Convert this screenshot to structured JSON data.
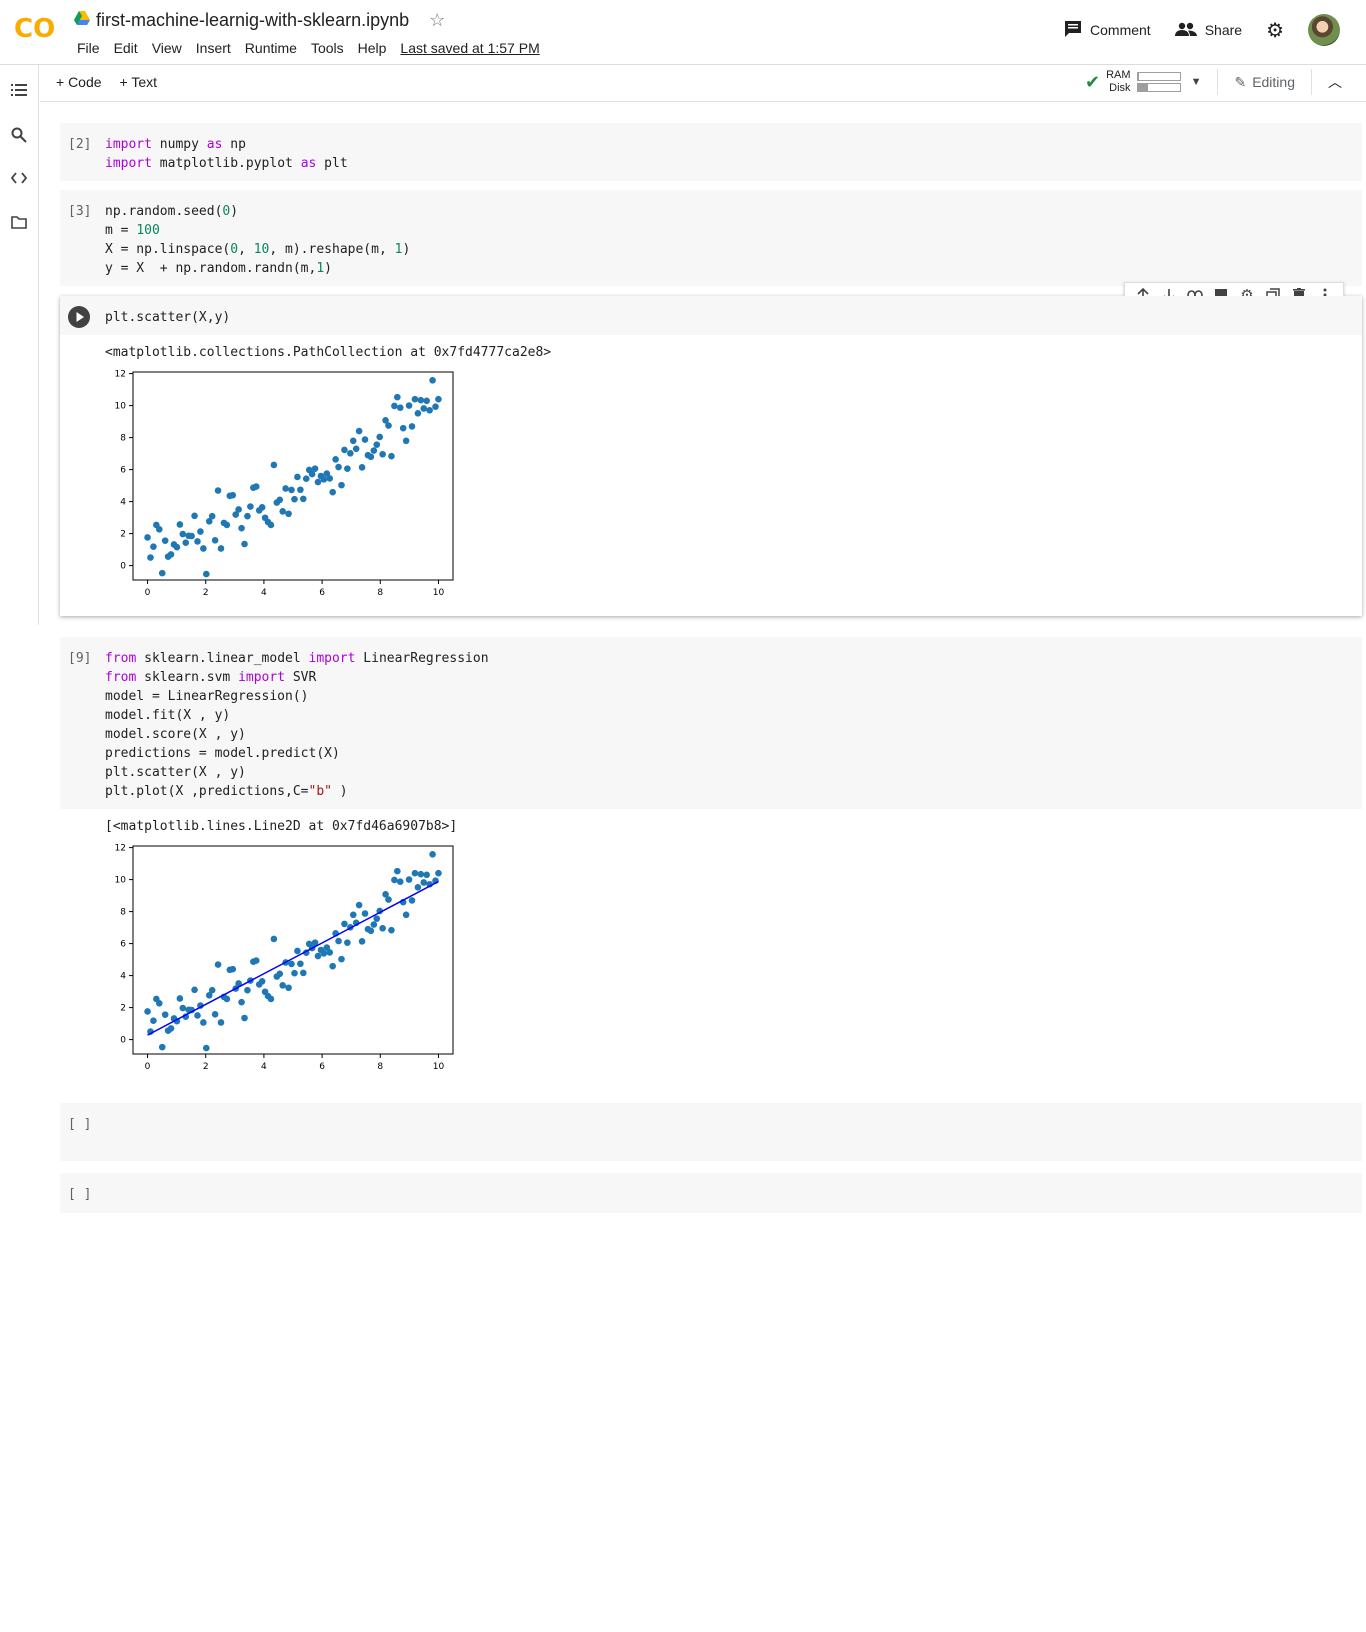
{
  "app": {
    "logo_text": "CO",
    "notebook_title": "first-machine-learnig-with-sklearn.ipynb",
    "menu": [
      "File",
      "Edit",
      "View",
      "Insert",
      "Runtime",
      "Tools",
      "Help"
    ],
    "last_saved": "Last saved at 1:57 PM",
    "comment_label": "Comment",
    "share_label": "Share"
  },
  "toolbar": {
    "add_code": "+ Code",
    "add_text": "+ Text",
    "ram_label": "RAM",
    "disk_label": "Disk",
    "ram_fill": 0.04,
    "disk_fill": 0.25,
    "editing_label": "Editing"
  },
  "cells": [
    {
      "prompt": "[2]",
      "lines": [
        [
          {
            "t": "import",
            "c": "kw"
          },
          {
            "t": " numpy "
          },
          {
            "t": "as",
            "c": "kw"
          },
          {
            "t": " np"
          }
        ],
        [
          {
            "t": "import",
            "c": "kw"
          },
          {
            "t": " matplotlib.pyplot "
          },
          {
            "t": "as",
            "c": "kw"
          },
          {
            "t": " plt"
          }
        ]
      ]
    },
    {
      "prompt": "[3]",
      "lines": [
        [
          {
            "t": "np.random.seed("
          },
          {
            "t": "0",
            "c": "num"
          },
          {
            "t": ")"
          }
        ],
        [
          {
            "t": "m = "
          },
          {
            "t": "100",
            "c": "num"
          }
        ],
        [
          {
            "t": "X = np.linspace("
          },
          {
            "t": "0",
            "c": "num"
          },
          {
            "t": ", "
          },
          {
            "t": "10",
            "c": "num"
          },
          {
            "t": ", m).reshape(m, "
          },
          {
            "t": "1",
            "c": "num"
          },
          {
            "t": ")"
          }
        ],
        [
          {
            "t": "y = X  + np.random.randn(m,"
          },
          {
            "t": "1",
            "c": "num"
          },
          {
            "t": ")"
          }
        ]
      ]
    },
    {
      "prompt": "",
      "lines": [
        [
          {
            "t": "plt.scatter(X,y)"
          }
        ]
      ],
      "output": "<matplotlib.collections.PathCollection at 0x7fd4777ca2e8>"
    },
    {
      "prompt": "[9]",
      "lines": [
        [
          {
            "t": "from",
            "c": "kw"
          },
          {
            "t": " sklearn.linear_model "
          },
          {
            "t": "import",
            "c": "kw"
          },
          {
            "t": " LinearRegression"
          }
        ],
        [
          {
            "t": "from",
            "c": "kw"
          },
          {
            "t": " sklearn.svm "
          },
          {
            "t": "import",
            "c": "kw"
          },
          {
            "t": " SVR"
          }
        ],
        [
          {
            "t": "model = LinearRegression()"
          }
        ],
        [
          {
            "t": "model.fit(X , y)"
          }
        ],
        [
          {
            "t": "model.score(X , y)"
          }
        ],
        [
          {
            "t": "predictions = model.predict(X)"
          }
        ],
        [
          {
            "t": "plt.scatter(X , y)"
          }
        ],
        [
          {
            "t": "plt.plot(X ,predictions,C="
          },
          {
            "t": "\"b\"",
            "c": "str"
          },
          {
            "t": " )"
          }
        ]
      ],
      "output": "[<matplotlib.lines.Line2D at 0x7fd46a6907b8>]"
    },
    {
      "prompt": "[ ]",
      "lines": []
    },
    {
      "prompt": "[ ]",
      "lines": []
    }
  ],
  "chart_data": [
    {
      "type": "scatter",
      "xlim": [
        -0.5,
        10.5
      ],
      "ylim": [
        -0.9,
        12.1
      ],
      "xticks": [
        0,
        2,
        4,
        6,
        8,
        10
      ],
      "yticks": [
        0,
        2,
        4,
        6,
        8,
        10,
        12
      ],
      "point_color": "#1f77b4",
      "x": [
        0,
        0.101,
        0.202,
        0.303,
        0.404,
        0.505,
        0.606,
        0.707,
        0.808,
        0.909,
        1.01,
        1.111,
        1.212,
        1.313,
        1.414,
        1.515,
        1.616,
        1.717,
        1.818,
        1.919,
        2.02,
        2.121,
        2.222,
        2.323,
        2.424,
        2.525,
        2.626,
        2.727,
        2.828,
        2.929,
        3.03,
        3.131,
        3.232,
        3.333,
        3.434,
        3.535,
        3.636,
        3.737,
        3.838,
        3.939,
        4.04,
        4.141,
        4.242,
        4.343,
        4.444,
        4.545,
        4.646,
        4.747,
        4.848,
        4.949,
        5.051,
        5.152,
        5.253,
        5.354,
        5.455,
        5.556,
        5.657,
        5.758,
        5.859,
        5.96,
        6.061,
        6.162,
        6.263,
        6.364,
        6.465,
        6.566,
        6.667,
        6.768,
        6.869,
        6.97,
        7.071,
        7.172,
        7.273,
        7.374,
        7.475,
        7.576,
        7.677,
        7.778,
        7.879,
        7.98,
        8.081,
        8.182,
        8.283,
        8.384,
        8.485,
        8.586,
        8.687,
        8.788,
        8.889,
        8.99,
        9.091,
        9.192,
        9.293,
        9.394,
        9.495,
        9.596,
        9.697,
        9.798,
        9.899,
        10.0
      ],
      "y": [
        1.76,
        0.5,
        1.18,
        2.54,
        2.27,
        -0.47,
        1.56,
        0.56,
        0.7,
        1.32,
        1.15,
        2.57,
        1.97,
        1.43,
        1.86,
        1.85,
        3.11,
        1.51,
        2.13,
        1.07,
        -0.53,
        2.77,
        3.09,
        1.58,
        4.69,
        1.07,
        2.67,
        2.54,
        4.36,
        4.4,
        3.19,
        3.51,
        2.34,
        1.35,
        3.09,
        3.69,
        4.87,
        4.94,
        3.45,
        3.64,
        2.99,
        2.72,
        2.54,
        6.29,
        3.94,
        4.11,
        3.39,
        4.82,
        3.24,
        4.73,
        4.15,
        5.54,
        4.74,
        4.17,
        5.43,
        5.98,
        5.72,
        6.06,
        5.22,
        5.6,
        5.39,
        5.75,
        5.45,
        4.59,
        6.64,
        6.16,
        5.03,
        7.23,
        6.06,
        7.02,
        7.8,
        7.3,
        8.41,
        6.14,
        7.88,
        6.9,
        6.8,
        7.19,
        7.56,
        8.04,
        6.96,
        9.08,
        8.75,
        6.84,
        9.98,
        10.53,
        9.87,
        8.59,
        7.8,
        10.0,
        8.7,
        10.4,
        9.52,
        10.34,
        9.82,
        10.3,
        9.71,
        11.58,
        9.93,
        10.4
      ]
    },
    {
      "type": "scatter",
      "xlim": [
        -0.5,
        10.5
      ],
      "ylim": [
        -0.9,
        12.1
      ],
      "xticks": [
        0,
        2,
        4,
        6,
        8,
        10
      ],
      "yticks": [
        0,
        2,
        4,
        6,
        8,
        10,
        12
      ],
      "point_color": "#1f77b4",
      "line_color": "#0000ff",
      "line": {
        "x": [
          0,
          10
        ],
        "y": [
          0.28,
          9.88
        ]
      },
      "x": [
        0,
        0.101,
        0.202,
        0.303,
        0.404,
        0.505,
        0.606,
        0.707,
        0.808,
        0.909,
        1.01,
        1.111,
        1.212,
        1.313,
        1.414,
        1.515,
        1.616,
        1.717,
        1.818,
        1.919,
        2.02,
        2.121,
        2.222,
        2.323,
        2.424,
        2.525,
        2.626,
        2.727,
        2.828,
        2.929,
        3.03,
        3.131,
        3.232,
        3.333,
        3.434,
        3.535,
        3.636,
        3.737,
        3.838,
        3.939,
        4.04,
        4.141,
        4.242,
        4.343,
        4.444,
        4.545,
        4.646,
        4.747,
        4.848,
        4.949,
        5.051,
        5.152,
        5.253,
        5.354,
        5.455,
        5.556,
        5.657,
        5.758,
        5.859,
        5.96,
        6.061,
        6.162,
        6.263,
        6.364,
        6.465,
        6.566,
        6.667,
        6.768,
        6.869,
        6.97,
        7.071,
        7.172,
        7.273,
        7.374,
        7.475,
        7.576,
        7.677,
        7.778,
        7.879,
        7.98,
        8.081,
        8.182,
        8.283,
        8.384,
        8.485,
        8.586,
        8.687,
        8.788,
        8.889,
        8.99,
        9.091,
        9.192,
        9.293,
        9.394,
        9.495,
        9.596,
        9.697,
        9.798,
        9.899,
        10.0
      ],
      "y": [
        1.76,
        0.5,
        1.18,
        2.54,
        2.27,
        -0.47,
        1.56,
        0.56,
        0.7,
        1.32,
        1.15,
        2.57,
        1.97,
        1.43,
        1.86,
        1.85,
        3.11,
        1.51,
        2.13,
        1.07,
        -0.53,
        2.77,
        3.09,
        1.58,
        4.69,
        1.07,
        2.67,
        2.54,
        4.36,
        4.4,
        3.19,
        3.51,
        2.34,
        1.35,
        3.09,
        3.69,
        4.87,
        4.94,
        3.45,
        3.64,
        2.99,
        2.72,
        2.54,
        6.29,
        3.94,
        4.11,
        3.39,
        4.82,
        3.24,
        4.73,
        4.15,
        5.54,
        4.74,
        4.17,
        5.43,
        5.98,
        5.72,
        6.06,
        5.22,
        5.6,
        5.39,
        5.75,
        5.45,
        4.59,
        6.64,
        6.16,
        5.03,
        7.23,
        6.06,
        7.02,
        7.8,
        7.3,
        8.41,
        6.14,
        7.88,
        6.9,
        6.8,
        7.19,
        7.56,
        8.04,
        6.96,
        9.08,
        8.75,
        6.84,
        9.98,
        10.53,
        9.87,
        8.59,
        7.8,
        10.0,
        8.7,
        10.4,
        9.52,
        10.34,
        9.82,
        10.3,
        9.71,
        11.58,
        9.93,
        10.4
      ]
    }
  ]
}
